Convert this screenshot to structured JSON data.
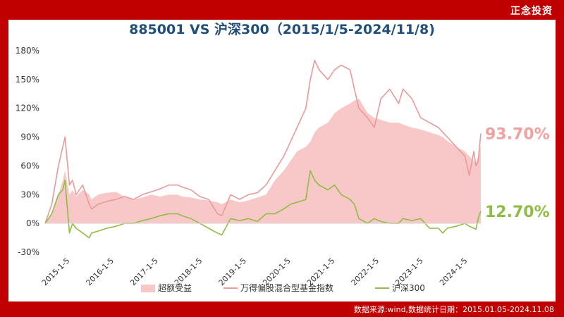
{
  "brand": "正念投资",
  "footer": "数据来源:wind,数据统计日期：2015.01.05-2024.11.08",
  "colors": {
    "background": "#c00000",
    "excess": "#f8c8c8",
    "index": "#e89a9a",
    "hs300": "#8fbc45",
    "title": "#1f4e79"
  },
  "chart_data": {
    "type": "line",
    "title": "885001 VS 沪深300（2015/1/5-2024/11/8)",
    "xlabel": "",
    "ylabel": "",
    "ylim": [
      -30,
      180
    ],
    "yticks": [
      "-30%",
      "0%",
      "30%",
      "60%",
      "90%",
      "120%",
      "150%",
      "180%"
    ],
    "ytick_values": [
      -30,
      0,
      30,
      60,
      90,
      120,
      150,
      180
    ],
    "xticks": [
      "2015-1-5",
      "2016-1-5",
      "2017-1-5",
      "2018-1-5",
      "2019-1-5",
      "2020-1-5",
      "2021-1-5",
      "2022-1-5",
      "2023-1-5",
      "2024-1-5"
    ],
    "xtick_values": [
      2015.0,
      2016.0,
      2017.0,
      2018.0,
      2019.0,
      2020.0,
      2021.0,
      2022.0,
      2023.0,
      2024.0
    ],
    "xlim": [
      2015.0,
      2024.86
    ],
    "legend_position": "bottom",
    "x": [
      2015.0,
      2015.15,
      2015.3,
      2015.4,
      2015.45,
      2015.55,
      2015.62,
      2015.7,
      2015.85,
      2016.0,
      2016.05,
      2016.2,
      2016.4,
      2016.6,
      2016.8,
      2017.0,
      2017.2,
      2017.4,
      2017.6,
      2017.8,
      2018.0,
      2018.1,
      2018.3,
      2018.5,
      2018.7,
      2018.9,
      2019.0,
      2019.2,
      2019.4,
      2019.6,
      2019.8,
      2020.0,
      2020.2,
      2020.4,
      2020.55,
      2020.7,
      2020.9,
      2021.0,
      2021.1,
      2021.2,
      2021.4,
      2021.55,
      2021.7,
      2021.9,
      2022.0,
      2022.1,
      2022.3,
      2022.45,
      2022.6,
      2022.8,
      2023.0,
      2023.1,
      2023.3,
      2023.5,
      2023.7,
      2023.9,
      2024.0,
      2024.1,
      2024.3,
      2024.5,
      2024.6,
      2024.7,
      2024.75,
      2024.8,
      2024.86
    ],
    "series": [
      {
        "name": "超额受益",
        "style": "area",
        "values": [
          0,
          10,
          30,
          45,
          55,
          30,
          35,
          28,
          35,
          30,
          25,
          30,
          32,
          33,
          28,
          25,
          27,
          30,
          28,
          30,
          30,
          28,
          27,
          25,
          24,
          22,
          20,
          25,
          22,
          24,
          27,
          30,
          45,
          55,
          65,
          75,
          80,
          85,
          95,
          100,
          105,
          115,
          120,
          125,
          128,
          130,
          115,
          110,
          108,
          105,
          105,
          103,
          100,
          98,
          95,
          92,
          90,
          86,
          80,
          75,
          70,
          65,
          62,
          70,
          81
        ]
      },
      {
        "name": "万得偏股混合型基金指数",
        "style": "line",
        "values": [
          0,
          20,
          60,
          80,
          90,
          40,
          45,
          30,
          40,
          20,
          15,
          20,
          23,
          25,
          28,
          25,
          30,
          33,
          36,
          40,
          40,
          38,
          35,
          28,
          25,
          10,
          8,
          30,
          25,
          30,
          32,
          40,
          55,
          70,
          85,
          100,
          120,
          150,
          170,
          160,
          150,
          160,
          165,
          160,
          140,
          120,
          110,
          100,
          130,
          140,
          125,
          140,
          130,
          110,
          105,
          100,
          95,
          90,
          80,
          70,
          50,
          75,
          60,
          65,
          93.7
        ]
      },
      {
        "name": "沪深300",
        "style": "line",
        "values": [
          0,
          10,
          30,
          35,
          45,
          -10,
          0,
          -5,
          -10,
          -15,
          -10,
          -8,
          -5,
          -3,
          0,
          0,
          3,
          5,
          8,
          10,
          10,
          8,
          5,
          0,
          -5,
          -10,
          -12,
          5,
          3,
          5,
          2,
          10,
          10,
          15,
          20,
          22,
          25,
          55,
          45,
          40,
          35,
          40,
          30,
          25,
          20,
          5,
          0,
          5,
          2,
          0,
          0,
          5,
          3,
          5,
          -5,
          -5,
          -10,
          -5,
          -3,
          0,
          -3,
          -5,
          -6,
          5,
          12.7
        ]
      }
    ],
    "end_labels": [
      "93.70%",
      "12.70%"
    ]
  }
}
